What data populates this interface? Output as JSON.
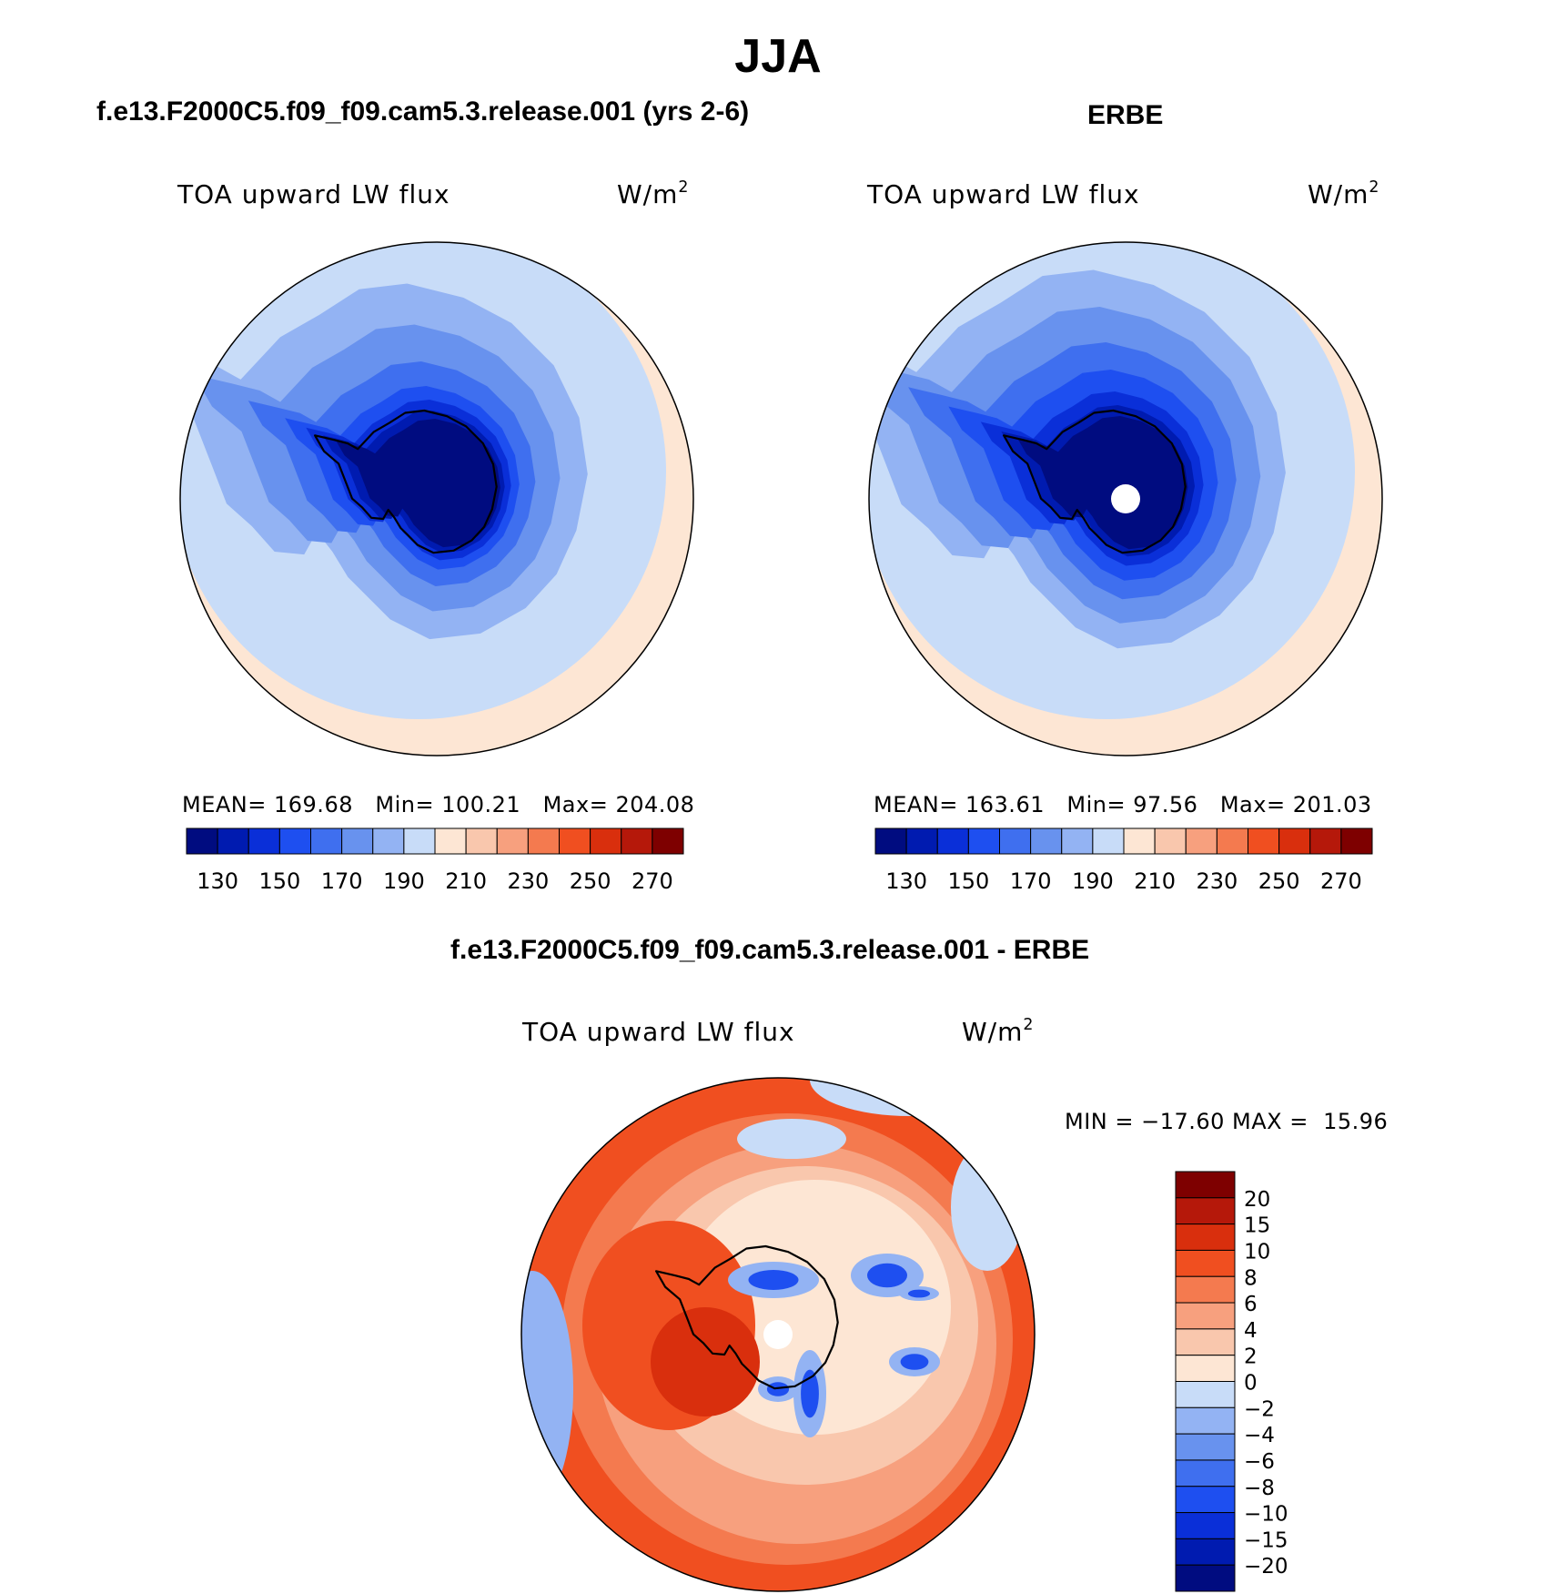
{
  "page_title": "JJA",
  "panels": [
    {
      "id": "model",
      "header": "f.e13.F2000C5.f09_f09.cam5.3.release.001 (yrs 2-6)",
      "variable": "TOA upward LW flux",
      "units_base": "W/m",
      "units_exp": "2",
      "stats": {
        "mean_label": "MEAN=",
        "mean": "169.68",
        "min_label": "Min=",
        "min": "100.21",
        "max_label": "Max=",
        "max": "204.08"
      },
      "levels_at_min": [
        0.45,
        0.52,
        0.59,
        0.66,
        0.72,
        0.8,
        0.92
      ]
    },
    {
      "id": "obs",
      "header": "ERBE",
      "variable": "TOA upward LW flux",
      "units_base": "W/m",
      "units_exp": "2",
      "stats": {
        "mean_label": "MEAN=",
        "mean": "163.61",
        "min_label": "Min=",
        "min": "97.56",
        "max_label": "Max=",
        "max": "201.03"
      },
      "levels_at_min": [
        0.5,
        0.62,
        0.73,
        0.84,
        0.95
      ]
    },
    {
      "id": "diff",
      "header": "f.e13.F2000C5.f09_f09.cam5.3.release.001 - ERBE",
      "variable": "TOA upward LW flux",
      "units_base": "W/m",
      "units_exp": "2",
      "stats_text": "MIN = −17.60 MAX =  15.96"
    }
  ],
  "abs_colorbar": {
    "colors": [
      "#000c80",
      "#001bb0",
      "#0a2fd8",
      "#1e4ff0",
      "#3f6fef",
      "#6892ee",
      "#93b3f3",
      "#c8dcf8",
      "#fde6d4",
      "#f9c7ad",
      "#f7a07e",
      "#f47a4f",
      "#f04f20",
      "#d92f0d",
      "#b5180a",
      "#7e0000"
    ],
    "tick_labels": [
      "130",
      "150",
      "170",
      "190",
      "210",
      "230",
      "250",
      "270"
    ]
  },
  "diff_colorbar": {
    "colors_top_to_bottom": [
      "#7e0000",
      "#b5180a",
      "#d92f0d",
      "#f04f20",
      "#f47a4f",
      "#f7a07e",
      "#f9c7ad",
      "#fde6d4",
      "#c8dcf8",
      "#93b3f3",
      "#6892ee",
      "#3f6fef",
      "#1e4ff0",
      "#0a2fd8",
      "#001bb0",
      "#000c80"
    ],
    "tick_labels": [
      "20",
      "15",
      "10",
      "8",
      "6",
      "4",
      "2",
      "0",
      "−2",
      "−4",
      "−6",
      "−8",
      "−10",
      "−15",
      "−20"
    ]
  }
}
